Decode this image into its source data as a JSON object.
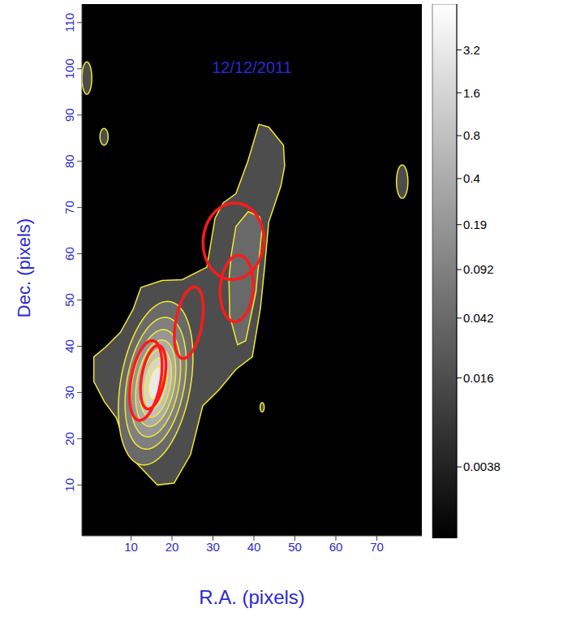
{
  "chart_data": {
    "type": "contour",
    "title": "12/12/2011",
    "x_label": "R.A. (pixels)",
    "y_label": "Dec. (pixels)",
    "xlim": [
      -2,
      81
    ],
    "xticks": [
      10,
      20,
      30,
      40,
      50,
      60,
      70
    ],
    "ylim": [
      -1,
      114
    ],
    "yticks": [
      10,
      20,
      30,
      40,
      50,
      60,
      70,
      80,
      90,
      100,
      110
    ],
    "colorbar": {
      "clim": [
        0.0012,
        6.7
      ],
      "ticks": [
        3.2,
        1.6,
        0.8,
        0.4,
        0.19,
        0.092,
        0.042,
        0.016,
        0.0038
      ],
      "log": true
    },
    "contours": {
      "color": "#f2ea2e",
      "paths": [
        {
          "level": 0.016,
          "x": [
            16.4,
            9.4,
            6.4,
            3.5,
            0.9,
            0.9,
            4.0,
            7.4,
            10.5,
            12.4,
            17.5,
            22.5,
            28.5,
            30.5,
            32.5,
            35.6,
            38.5,
            41.2,
            43.6,
            47.2,
            47.5,
            46.6,
            43.6,
            42.6,
            41.6,
            39.6,
            35.6,
            31.5,
            27.5,
            24.5,
            20.5
          ],
          "y": [
            10,
            16.5,
            24.5,
            28,
            32.4,
            37.7,
            40,
            43,
            48,
            52.7,
            54.2,
            54.4,
            57.1,
            67.7,
            71,
            73,
            80,
            88,
            87.4,
            83.5,
            79,
            74.7,
            66.8,
            57,
            48.3,
            37.7,
            35,
            30.6,
            27.1,
            16.5,
            10.4
          ]
        },
        {
          "level": 0.042,
          "x": [
            33.9,
            34.5,
            35.6,
            38.6,
            41.4,
            42,
            40.5,
            38,
            36,
            34.1
          ],
          "y": [
            54.4,
            60,
            65.9,
            69.1,
            68,
            65.9,
            51.8,
            41.2,
            40.3,
            46.5
          ]
        }
      ],
      "ellipses": [
        {
          "level": 0.016,
          "x": -0.8,
          "y": 98,
          "rx": 1.2,
          "ry": 3.5,
          "angle": 0
        },
        {
          "level": 0.016,
          "x": 3.4,
          "y": 85.3,
          "rx": 1.0,
          "ry": 1.8,
          "angle": 0
        },
        {
          "level": 0.016,
          "x": 42,
          "y": 26.8,
          "rx": 0.5,
          "ry": 1.0,
          "angle": 0
        },
        {
          "level": 0.016,
          "x": 76.2,
          "y": 75.6,
          "rx": 1.4,
          "ry": 3.6,
          "angle": 0
        },
        {
          "level": 0.042,
          "x": 16,
          "y": 32,
          "rx": 8.5,
          "ry": 18,
          "angle": -12
        },
        {
          "level": 0.092,
          "x": 16,
          "y": 32,
          "rx": 7,
          "ry": 14.5,
          "angle": -12
        },
        {
          "level": 0.19,
          "x": 16,
          "y": 32,
          "rx": 5.7,
          "ry": 11.8,
          "angle": -12
        },
        {
          "level": 0.4,
          "x": 16,
          "y": 32,
          "rx": 4.6,
          "ry": 9.5,
          "angle": -12
        },
        {
          "level": 0.8,
          "x": 16,
          "y": 32,
          "rx": 3.6,
          "ry": 7.5,
          "angle": -12
        },
        {
          "level": 1.6,
          "x": 16,
          "y": 32,
          "rx": 2.6,
          "ry": 5.6,
          "angle": -12
        },
        {
          "level": 3.2,
          "x": 16,
          "y": 32,
          "rx": 1.6,
          "ry": 3.6,
          "angle": -12
        }
      ]
    },
    "ellipses": {
      "color": "#ff1a1a",
      "items": [
        {
          "x": 35,
          "y": 62.7,
          "rx": 7.4,
          "ry": 8.3,
          "angle": -10
        },
        {
          "x": 35.8,
          "y": 52.5,
          "rx": 4,
          "ry": 7.2,
          "angle": -5
        },
        {
          "x": 24.1,
          "y": 45.1,
          "rx": 3.2,
          "ry": 7.9,
          "angle": -12
        },
        {
          "x": 13.6,
          "y": 32.6,
          "rx": 3.6,
          "ry": 8.8,
          "angle": -12
        },
        {
          "x": 15.4,
          "y": 33.3,
          "rx": 2.8,
          "ry": 7,
          "angle": -12
        }
      ]
    }
  }
}
